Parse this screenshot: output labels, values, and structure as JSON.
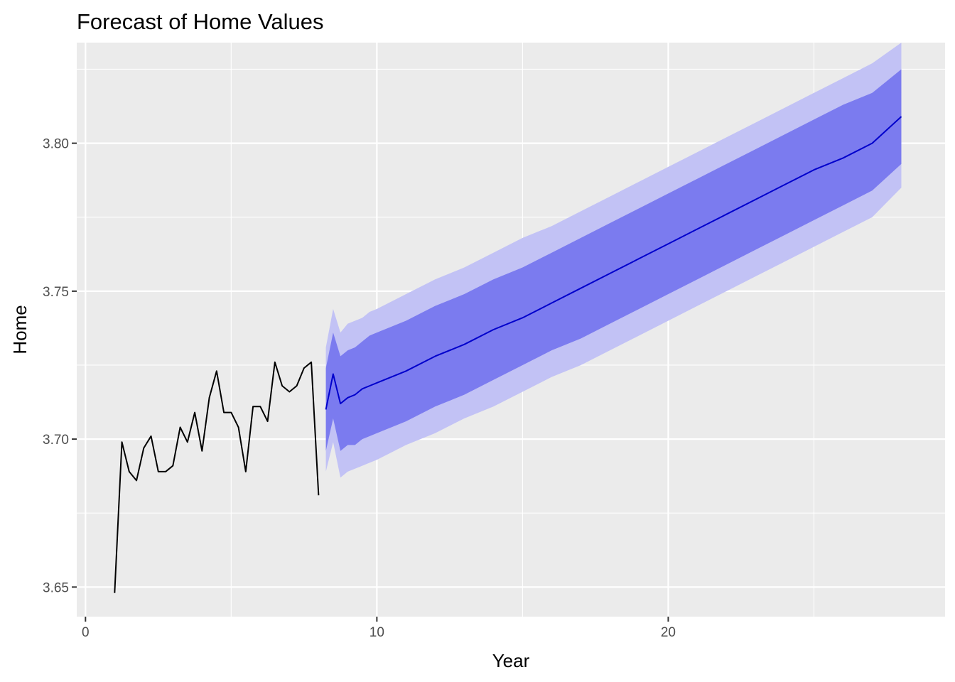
{
  "chart_data": {
    "type": "line",
    "title": "Forecast of Home Values",
    "xlabel": "Year",
    "ylabel": "Home",
    "xlim": [
      -0.3,
      29.5
    ],
    "ylim": [
      3.64,
      3.834
    ],
    "x_ticks": [
      0,
      10,
      20
    ],
    "x_tick_labels": [
      "0",
      "10",
      "20"
    ],
    "y_ticks": [
      3.65,
      3.7,
      3.75,
      3.8
    ],
    "y_tick_labels": [
      "3.65",
      "3.70",
      "3.75",
      "3.80"
    ],
    "grid": true,
    "legend": "none",
    "colors": {
      "panel": "#ebebeb",
      "grid": "#ffffff",
      "history": "#000000",
      "forecast": "#0000cc",
      "band80": "#7b7bef",
      "band95": "#c2c2f5",
      "tick_text": "#4d4d4d",
      "axis_text": "#000000"
    },
    "series": [
      {
        "role": "history",
        "x": [
          1.0,
          1.25,
          1.5,
          1.75,
          2.0,
          2.25,
          2.5,
          2.75,
          3.0,
          3.25,
          3.5,
          3.75,
          4.0,
          4.25,
          4.5,
          4.75,
          5.0,
          5.25,
          5.5,
          5.75,
          6.0,
          6.25,
          6.5,
          6.75,
          7.0,
          7.25,
          7.5,
          7.75,
          8.0
        ],
        "y": [
          3.648,
          3.699,
          3.689,
          3.686,
          3.697,
          3.701,
          3.689,
          3.689,
          3.691,
          3.704,
          3.699,
          3.709,
          3.696,
          3.714,
          3.723,
          3.709,
          3.709,
          3.704,
          3.689,
          3.711,
          3.711,
          3.706,
          3.726,
          3.718,
          3.716,
          3.718,
          3.724,
          3.726,
          3.681
        ]
      },
      {
        "role": "forecast",
        "x": [
          8.25,
          8.5,
          8.75,
          9.0,
          9.25,
          9.5,
          9.75,
          10.0,
          11.0,
          12.0,
          13.0,
          14.0,
          15.0,
          16.0,
          17.0,
          18.0,
          19.0,
          20.0,
          21.0,
          22.0,
          23.0,
          24.0,
          25.0,
          26.0,
          27.0,
          28.0
        ],
        "y": [
          3.71,
          3.722,
          3.712,
          3.714,
          3.715,
          3.717,
          3.718,
          3.719,
          3.723,
          3.728,
          3.732,
          3.737,
          3.741,
          3.746,
          3.751,
          3.756,
          3.761,
          3.766,
          3.771,
          3.776,
          3.781,
          3.786,
          3.791,
          3.795,
          3.8,
          3.809
        ]
      },
      {
        "role": "interval-80",
        "x": [
          8.25,
          8.5,
          8.75,
          9.0,
          9.25,
          9.5,
          9.75,
          10.0,
          11.0,
          12.0,
          13.0,
          14.0,
          15.0,
          16.0,
          17.0,
          18.0,
          19.0,
          20.0,
          21.0,
          22.0,
          23.0,
          24.0,
          25.0,
          26.0,
          27.0,
          28.0
        ],
        "lower": [
          3.696,
          3.707,
          3.696,
          3.698,
          3.698,
          3.7,
          3.701,
          3.702,
          3.706,
          3.711,
          3.715,
          3.72,
          3.725,
          3.73,
          3.734,
          3.739,
          3.744,
          3.749,
          3.754,
          3.759,
          3.764,
          3.769,
          3.774,
          3.779,
          3.784,
          3.793
        ],
        "upper": [
          3.724,
          3.736,
          3.728,
          3.73,
          3.731,
          3.733,
          3.735,
          3.736,
          3.74,
          3.745,
          3.749,
          3.754,
          3.758,
          3.763,
          3.768,
          3.773,
          3.778,
          3.783,
          3.788,
          3.793,
          3.798,
          3.803,
          3.808,
          3.813,
          3.817,
          3.825
        ]
      },
      {
        "role": "interval-95",
        "x": [
          8.25,
          8.5,
          8.75,
          9.0,
          9.25,
          9.5,
          9.75,
          10.0,
          11.0,
          12.0,
          13.0,
          14.0,
          15.0,
          16.0,
          17.0,
          18.0,
          19.0,
          20.0,
          21.0,
          22.0,
          23.0,
          24.0,
          25.0,
          26.0,
          27.0,
          28.0
        ],
        "lower": [
          3.689,
          3.699,
          3.687,
          3.689,
          3.69,
          3.691,
          3.692,
          3.693,
          3.698,
          3.702,
          3.707,
          3.711,
          3.716,
          3.721,
          3.725,
          3.73,
          3.735,
          3.74,
          3.745,
          3.75,
          3.755,
          3.76,
          3.765,
          3.77,
          3.775,
          3.785
        ],
        "upper": [
          3.731,
          3.744,
          3.736,
          3.739,
          3.74,
          3.741,
          3.743,
          3.744,
          3.749,
          3.754,
          3.758,
          3.763,
          3.768,
          3.772,
          3.777,
          3.782,
          3.787,
          3.792,
          3.797,
          3.802,
          3.807,
          3.812,
          3.817,
          3.822,
          3.827,
          3.834
        ]
      }
    ]
  }
}
